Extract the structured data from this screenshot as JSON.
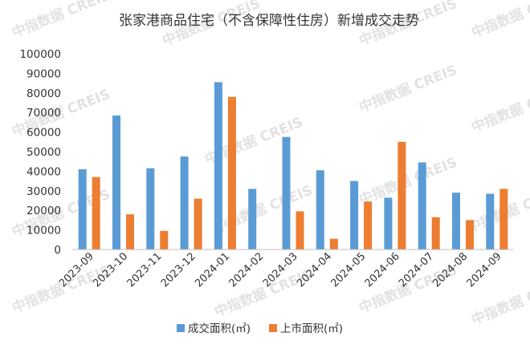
{
  "chart_data": {
    "type": "bar",
    "title": "张家港商品住宅（不含保障性住房）新增成交走势",
    "categories": [
      "2023-09",
      "2023-10",
      "2023-11",
      "2023-12",
      "2024-01",
      "2024-02",
      "2024-03",
      "2024-04",
      "2024-05",
      "2024-06",
      "2024-07",
      "2024-08",
      "2024-09"
    ],
    "series": [
      {
        "name": "成交面积(㎡)",
        "color": "#5b9bd5",
        "values": [
          41000,
          68500,
          41500,
          47500,
          85500,
          31000,
          57500,
          40500,
          35000,
          26500,
          44500,
          29000,
          28500
        ]
      },
      {
        "name": "上市面积(㎡)",
        "color": "#ed7d31",
        "values": [
          37000,
          18000,
          9500,
          26000,
          78000,
          0,
          19500,
          5500,
          24500,
          55000,
          16500,
          15000,
          31000
        ]
      }
    ],
    "ylim": [
      0,
      100000
    ],
    "yticks": [
      0,
      10000,
      20000,
      30000,
      40000,
      50000,
      60000,
      70000,
      80000,
      90000,
      100000
    ],
    "grid": false,
    "legend_position": "bottom"
  },
  "watermark": {
    "text": "中指数据 CREIS"
  }
}
